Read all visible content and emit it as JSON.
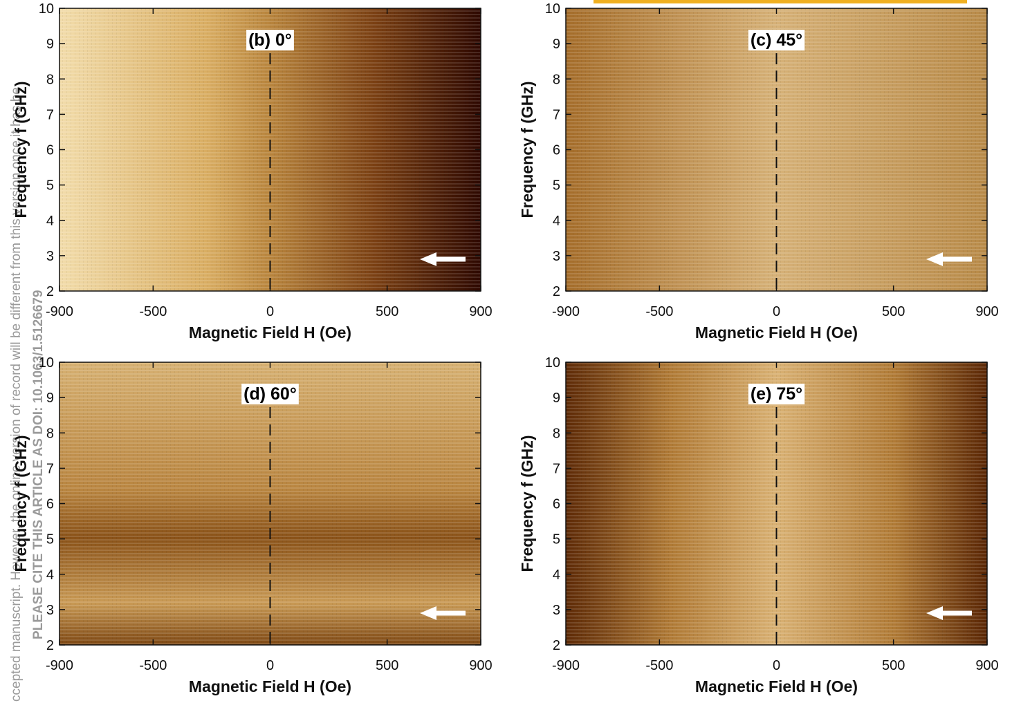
{
  "watermark": [
    "ccepted manuscript. However, the online version of record will be different from this version once it has be",
    "PLEASE CITE THIS ARTICLE AS DOI: 10.1063/1.5126679"
  ],
  "chart_data": [
    {
      "type": "heatmap",
      "title": "(b) 0°",
      "x_label": "Magnetic Field H (Oe)",
      "y_label": "Frequency f (GHz)",
      "xlim": [
        -900,
        900
      ],
      "xticks": [
        -900,
        -500,
        0,
        500,
        900
      ],
      "ylim": [
        2,
        10
      ],
      "yticks": [
        2,
        3,
        4,
        5,
        6,
        7,
        8,
        9,
        10
      ],
      "vline": 0
    },
    {
      "type": "heatmap",
      "title": "(c) 45°",
      "x_label": "Magnetic Field H (Oe)",
      "y_label": "Frequency f (GHz)",
      "xlim": [
        -900,
        900
      ],
      "xticks": [
        -900,
        -500,
        0,
        500,
        900
      ],
      "ylim": [
        2,
        10
      ],
      "yticks": [
        2,
        3,
        4,
        5,
        6,
        7,
        8,
        9,
        10
      ],
      "vline": 0
    },
    {
      "type": "heatmap",
      "title": "(d) 60°",
      "x_label": "Magnetic Field H (Oe)",
      "y_label": "Frequency f (GHz)",
      "xlim": [
        -900,
        900
      ],
      "xticks": [
        -900,
        -500,
        0,
        500,
        900
      ],
      "ylim": [
        2,
        10
      ],
      "yticks": [
        2,
        3,
        4,
        5,
        6,
        7,
        8,
        9,
        10
      ],
      "vline": 0
    },
    {
      "type": "heatmap",
      "title": "(e) 75°",
      "x_label": "Magnetic Field H (Oe)",
      "y_label": "Frequency f (GHz)",
      "xlim": [
        -900,
        900
      ],
      "xticks": [
        -900,
        -500,
        0,
        500,
        900
      ],
      "ylim": [
        2,
        10
      ],
      "yticks": [
        2,
        3,
        4,
        5,
        6,
        7,
        8,
        9,
        10
      ],
      "vline": 0
    }
  ]
}
